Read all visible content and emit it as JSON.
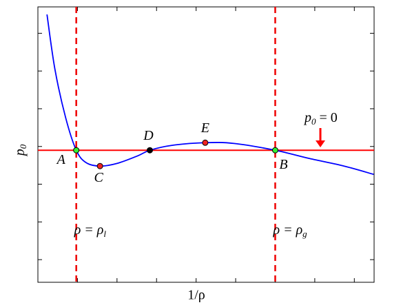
{
  "chart_data": {
    "type": "line",
    "xlabel": "1/ρ",
    "ylabel": {
      "text": "p",
      "sub": "0"
    },
    "x": [
      0.23,
      0.43,
      0.7,
      0.97,
      1.22,
      1.57,
      2.0,
      2.52,
      2.83,
      3.39,
      4.23,
      4.96,
      6.0,
      6.87,
      7.74,
      8.49
    ],
    "series": [
      {
        "color": "#0000ff",
        "values": [
          3.6,
          2.15,
          0.87,
          0,
          -0.33,
          -0.42,
          -0.35,
          -0.15,
          0,
          0.13,
          0.2,
          0.18,
          0,
          -0.22,
          -0.42,
          -0.64
        ]
      }
    ],
    "points": [
      {
        "label": "A",
        "x": 0.97,
        "y": 0,
        "color": "#33ee33"
      },
      {
        "label": "C",
        "x": 1.57,
        "y": -0.42,
        "color": "#ee2222"
      },
      {
        "label": "D",
        "x": 2.83,
        "y": 0,
        "color": "#000000"
      },
      {
        "label": "E",
        "x": 4.23,
        "y": 0.2,
        "color": "#ee2222"
      },
      {
        "label": "B",
        "x": 6.0,
        "y": 0,
        "color": "#33ee33"
      }
    ],
    "hline": {
      "y": 0,
      "color": "#ff0000",
      "label": {
        "text": "p",
        "sub": "0",
        "rest": " = 0"
      }
    },
    "vlines": [
      {
        "x": 0.97,
        "color": "#ee0000",
        "label": {
          "text": "ρ = ρ",
          "sub": "l"
        }
      },
      {
        "x": 6.0,
        "color": "#ee0000",
        "label": {
          "text": "ρ = ρ",
          "sub": "g"
        }
      }
    ],
    "xlim": [
      0,
      8.5
    ],
    "ylim": [
      -3.5,
      3.8
    ],
    "xticks": [
      1,
      2,
      3,
      4,
      5,
      6,
      7,
      8
    ],
    "yticks": [
      -2.9,
      -1.9,
      -0.9,
      0.1,
      1.1,
      2.1,
      3.1
    ]
  }
}
